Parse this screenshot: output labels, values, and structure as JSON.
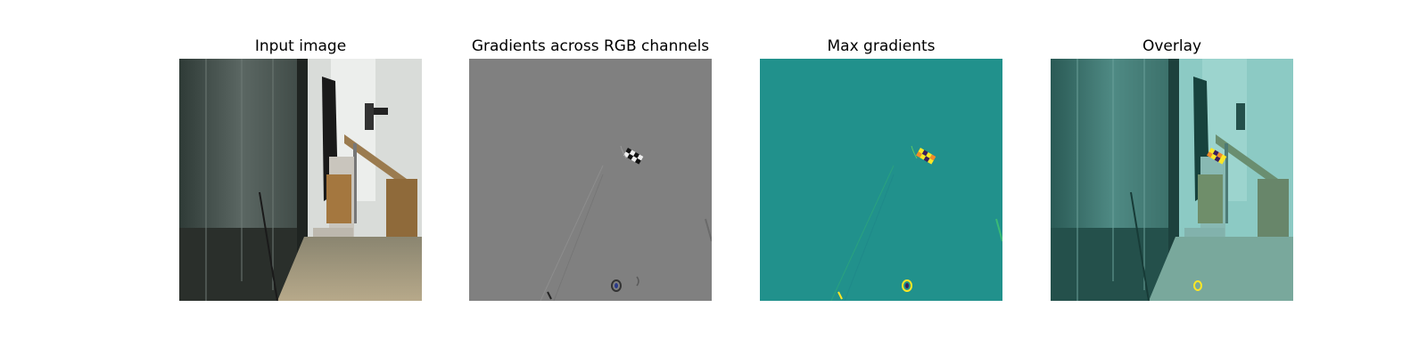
{
  "figure": {
    "panels": [
      {
        "title": "Input image"
      },
      {
        "title": "Gradients across RGB channels"
      },
      {
        "title": "Max gradients"
      },
      {
        "title": "Overlay"
      }
    ]
  },
  "colors": {
    "gradient_background": "#808080",
    "max_gradient_background": "#21918c",
    "overlay_tint": "#5fb8b0",
    "highlight_yellow": "#fde725"
  }
}
